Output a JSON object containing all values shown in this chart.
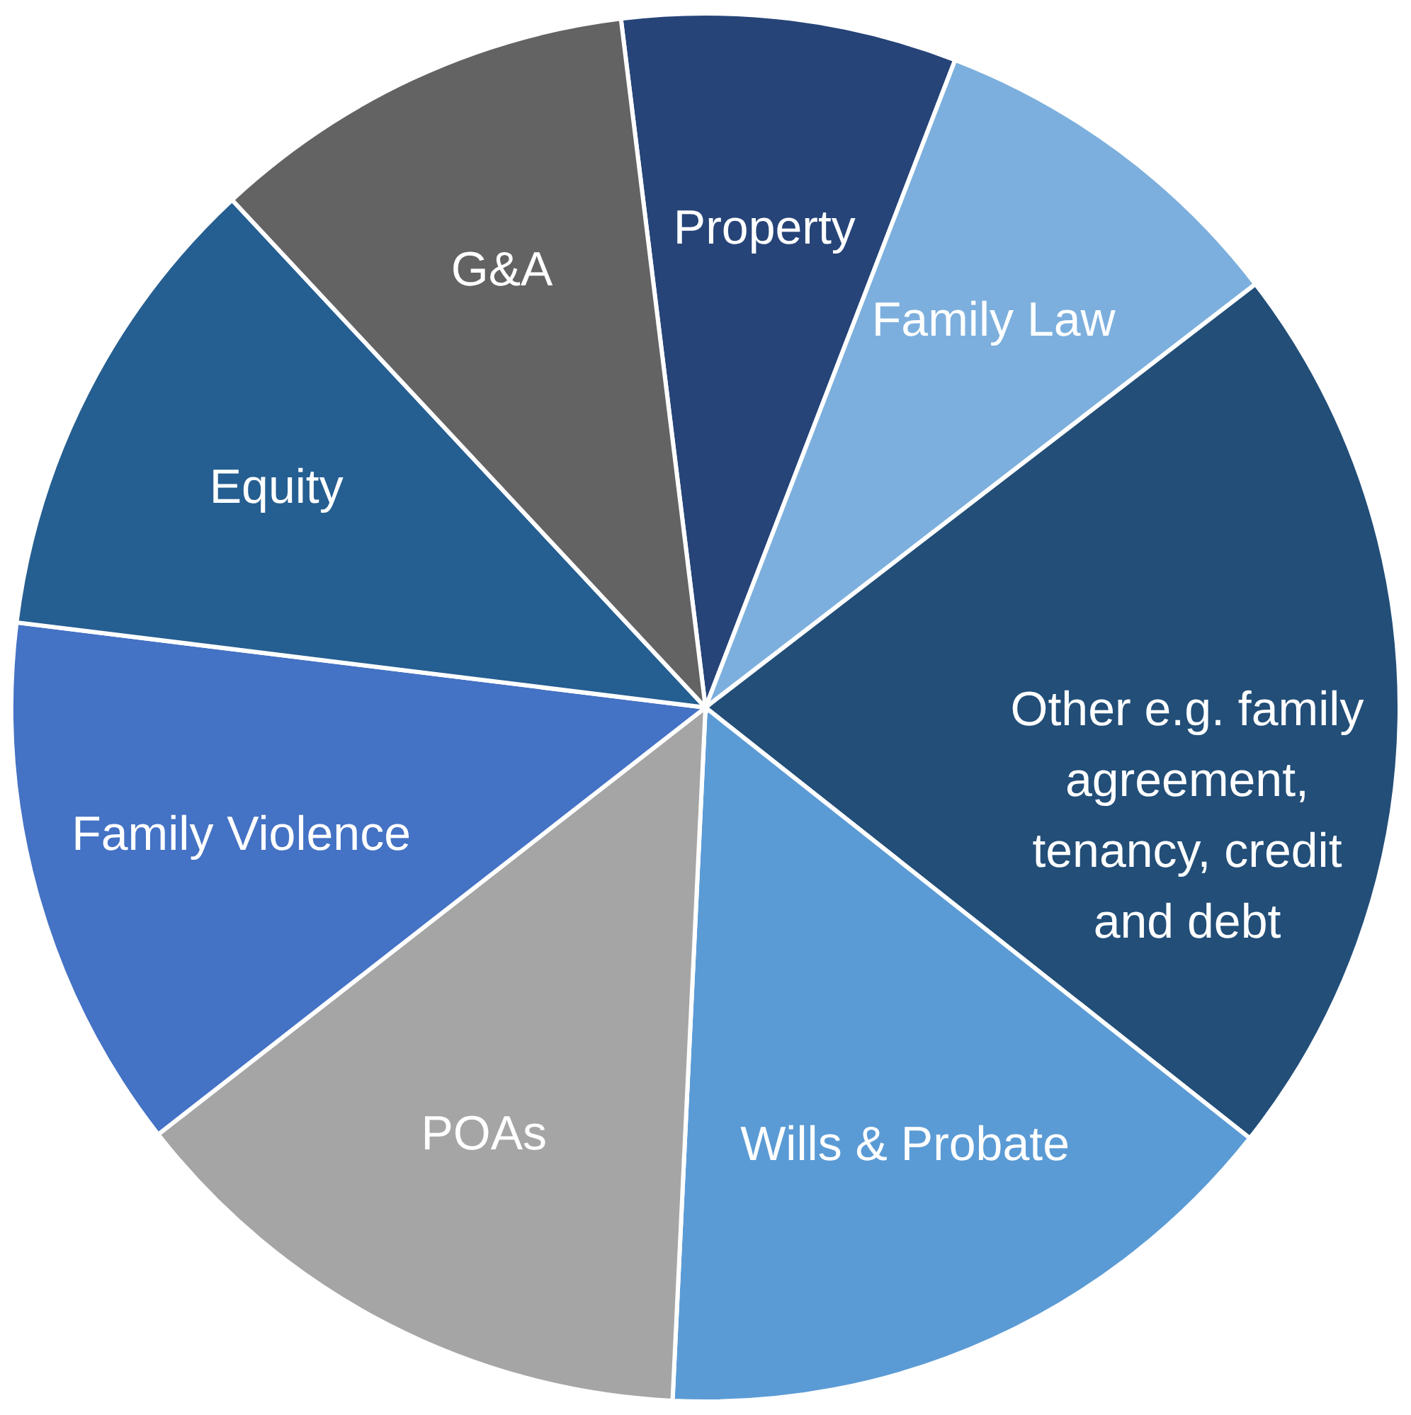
{
  "chart_data": {
    "type": "pie",
    "categories": [
      "Property",
      "Family Law",
      "Other e.g. family agreement, tenancy, credit and debt",
      "Wills & Probate",
      "POAs",
      "Family Violence",
      "Equity",
      "G&A"
    ],
    "values": [
      7.8,
      8.7,
      21.1,
      15.1,
      13.7,
      12.5,
      11.1,
      10.0
    ],
    "colors": [
      "#264478",
      "#7cafdd",
      "#224e78",
      "#5b9bd5",
      "#a5a5a5",
      "#4472c4",
      "#255e91",
      "#636363"
    ]
  }
}
